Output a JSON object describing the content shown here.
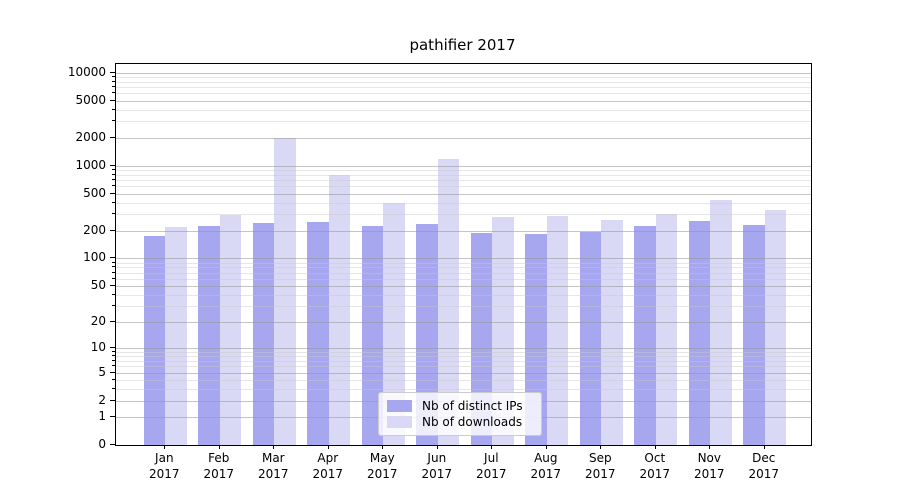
{
  "chart_data": {
    "type": "bar",
    "title": "pathifier 2017",
    "categories": [
      "Jan 2017",
      "Feb 2017",
      "Mar 2017",
      "Apr 2017",
      "May 2017",
      "Jun 2017",
      "Jul 2017",
      "Aug 2017",
      "Sep 2017",
      "Oct 2017",
      "Nov 2017",
      "Dec 2017"
    ],
    "months": [
      "Jan",
      "Feb",
      "Mar",
      "Apr",
      "May",
      "Jun",
      "Jul",
      "Aug",
      "Sep",
      "Oct",
      "Nov",
      "Dec"
    ],
    "year": "2017",
    "series": [
      {
        "name": "Nb of distinct IPs",
        "color": "#a7a7f0",
        "values": [
          175,
          227,
          242,
          248,
          223,
          238,
          188,
          186,
          192,
          223,
          253,
          229
        ]
      },
      {
        "name": "Nb of downloads",
        "color": "#d9d9f6",
        "values": [
          218,
          298,
          1990,
          800,
          398,
          1170,
          281,
          286,
          259,
          303,
          429,
          338
        ]
      }
    ],
    "yscale": "log1p",
    "y_ticks": [
      0,
      1,
      2,
      5,
      10,
      20,
      50,
      100,
      200,
      500,
      1000,
      2000,
      5000,
      10000
    ],
    "y_minor_ticks": [
      3,
      4,
      6,
      7,
      8,
      9,
      30,
      40,
      60,
      70,
      80,
      90,
      300,
      400,
      600,
      700,
      800,
      900,
      3000,
      4000,
      6000,
      7000,
      8000,
      9000
    ],
    "ylim": [
      0,
      12400
    ],
    "xlabel": "",
    "ylabel": "",
    "grid": true,
    "legend_position": "lower-center"
  },
  "colors": {
    "background": "#ffffff",
    "axis": "#000000",
    "grid_major": "#c0c0c0",
    "grid_minor": "#e4e4e4",
    "legend_border": "#cccccc",
    "text": "#000000"
  }
}
